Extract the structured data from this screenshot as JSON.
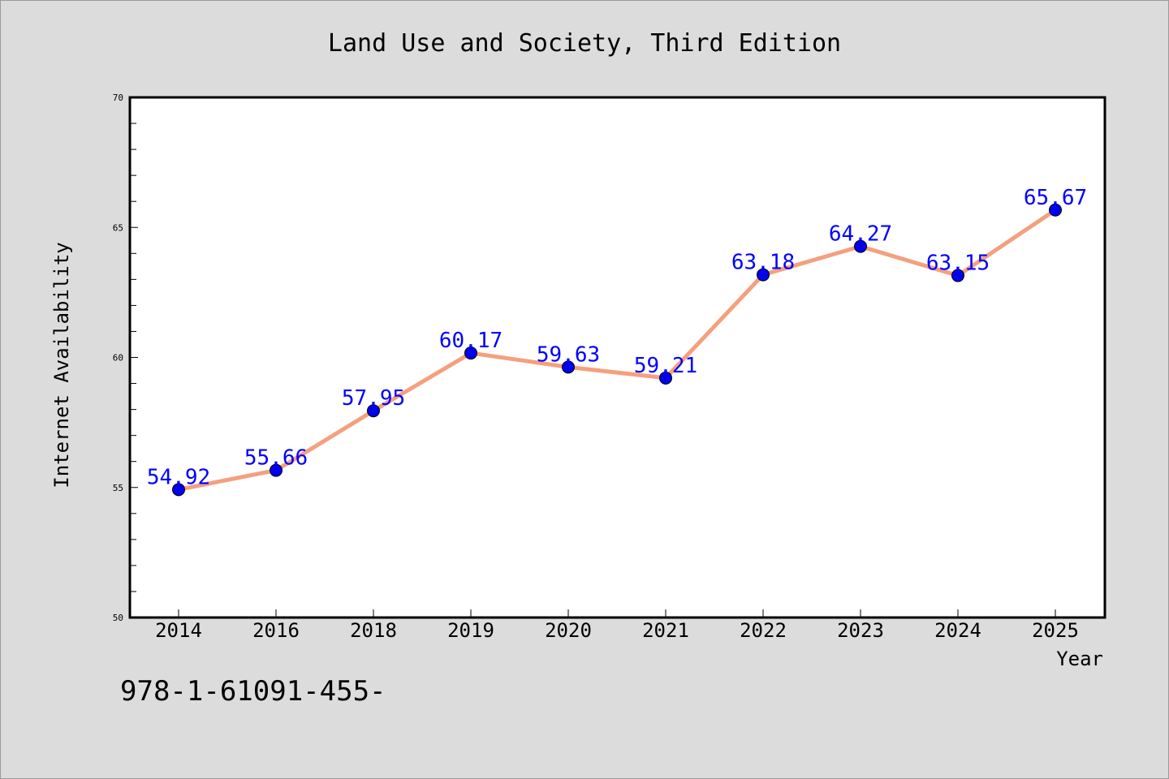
{
  "chart_data": {
    "type": "line",
    "title": "Land Use and Society, Third Edition",
    "xlabel": "Year",
    "ylabel": "Internet Availability",
    "categories": [
      "2014",
      "2016",
      "2018",
      "2019",
      "2020",
      "2021",
      "2022",
      "2023",
      "2024",
      "2025"
    ],
    "series": [
      {
        "values": [
          54.92,
          55.66,
          57.95,
          60.17,
          59.63,
          59.21,
          63.18,
          64.27,
          63.15,
          65.67
        ],
        "line_color": "#f4a07e",
        "marker_color": "#0000ee"
      }
    ],
    "data_labels": [
      "54.92",
      "55.66",
      "57.95",
      "60.17",
      "59.63",
      "59.21",
      "63.18",
      "64.27",
      "63.15",
      "65.67"
    ],
    "ylim": [
      50,
      70
    ],
    "yticks": [
      "50",
      "55",
      "60",
      "65",
      "70"
    ],
    "grid": false,
    "label_color": "#0000ff"
  },
  "footer": {
    "code": "978-1-61091-455-"
  }
}
